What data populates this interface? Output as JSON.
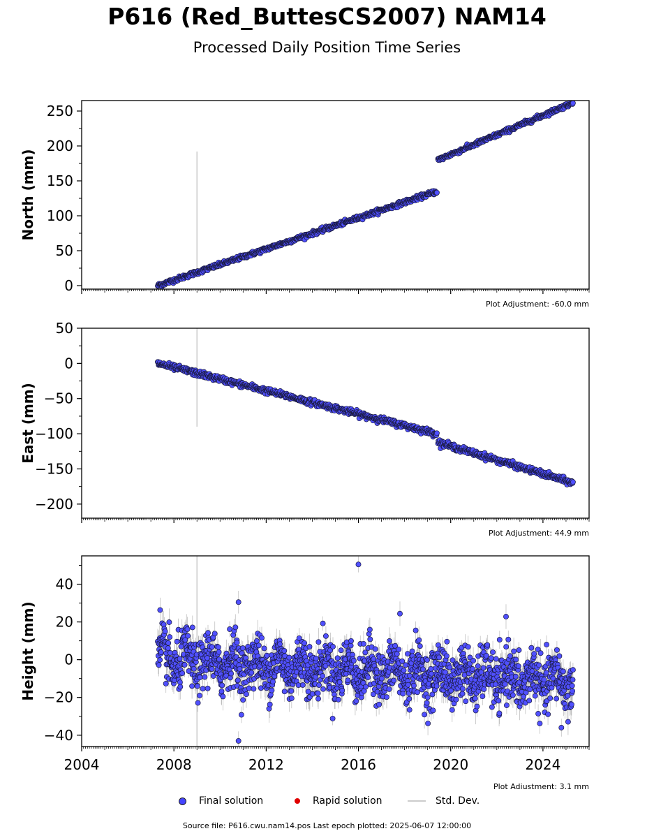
{
  "title": "P616 (Red_ButtesCS2007) NAM14",
  "subtitle": "Processed Daily Position Time Series",
  "chart_data": [
    {
      "type": "scatter",
      "ylabel": "North (mm)",
      "xlim": [
        2004,
        2026
      ],
      "ylim": [
        -5,
        265
      ],
      "yticks": [
        0,
        50,
        100,
        150,
        200,
        250
      ],
      "adjustment": "Plot Adjustment: -60.0 mm",
      "segments": [
        {
          "x": [
            2007.3,
            2019.4
          ],
          "y": [
            0,
            135
          ]
        },
        {
          "x": [
            2019.45,
            2025.3
          ],
          "y": [
            180,
            262
          ]
        }
      ],
      "noise": 1.5,
      "outlier_line": {
        "x": 2009.0,
        "y": [
          18,
          192
        ]
      }
    },
    {
      "type": "scatter",
      "ylabel": "East (mm)",
      "xlim": [
        2004,
        2026
      ],
      "ylim": [
        -220,
        50
      ],
      "yticks": [
        -200,
        -150,
        -100,
        -50,
        0,
        50
      ],
      "adjustment": "Plot Adjustment: 44.9 mm",
      "segments": [
        {
          "x": [
            2007.3,
            2019.4
          ],
          "y": [
            0,
            -100
          ]
        },
        {
          "x": [
            2019.45,
            2025.3
          ],
          "y": [
            -112,
            -170
          ]
        }
      ],
      "noise": 2.0,
      "outlier_line": {
        "x": 2009.0,
        "y": [
          -90,
          50
        ]
      }
    },
    {
      "type": "scatter",
      "ylabel": "Height (mm)",
      "xlim": [
        2004,
        2026
      ],
      "ylim": [
        -46,
        55
      ],
      "yticks": [
        -40,
        -20,
        0,
        20,
        40
      ],
      "xticks": [
        2004,
        2008,
        2012,
        2016,
        2020,
        2024
      ],
      "adjustment": "Plot Adjustment: 3.1 mm",
      "segments": [
        {
          "x": [
            2007.3,
            2025.3
          ],
          "y": [
            0,
            -12
          ]
        }
      ],
      "noise": 7.0,
      "seasonal": 5.0,
      "outliers": [
        {
          "x": 2016.0,
          "y": 50.5
        },
        {
          "x": 2010.8,
          "y": -43
        },
        {
          "x": 2010.8,
          "y": 30.5
        },
        {
          "x": 2007.4,
          "y": 26.3
        },
        {
          "x": 2022.4,
          "y": 22.8
        },
        {
          "x": 2017.8,
          "y": 24.4
        },
        {
          "x": 2024.8,
          "y": -36
        }
      ],
      "outlier_line": {
        "x": 2009.0,
        "y": [
          -46,
          55
        ]
      }
    }
  ],
  "legend": {
    "final": "Final solution",
    "rapid": "Rapid solution",
    "stddev": "Std. Dev."
  },
  "footer": "Source file: P616.cwu.nam14.pos  Last epoch plotted: 2025-06-07 12:00:00"
}
